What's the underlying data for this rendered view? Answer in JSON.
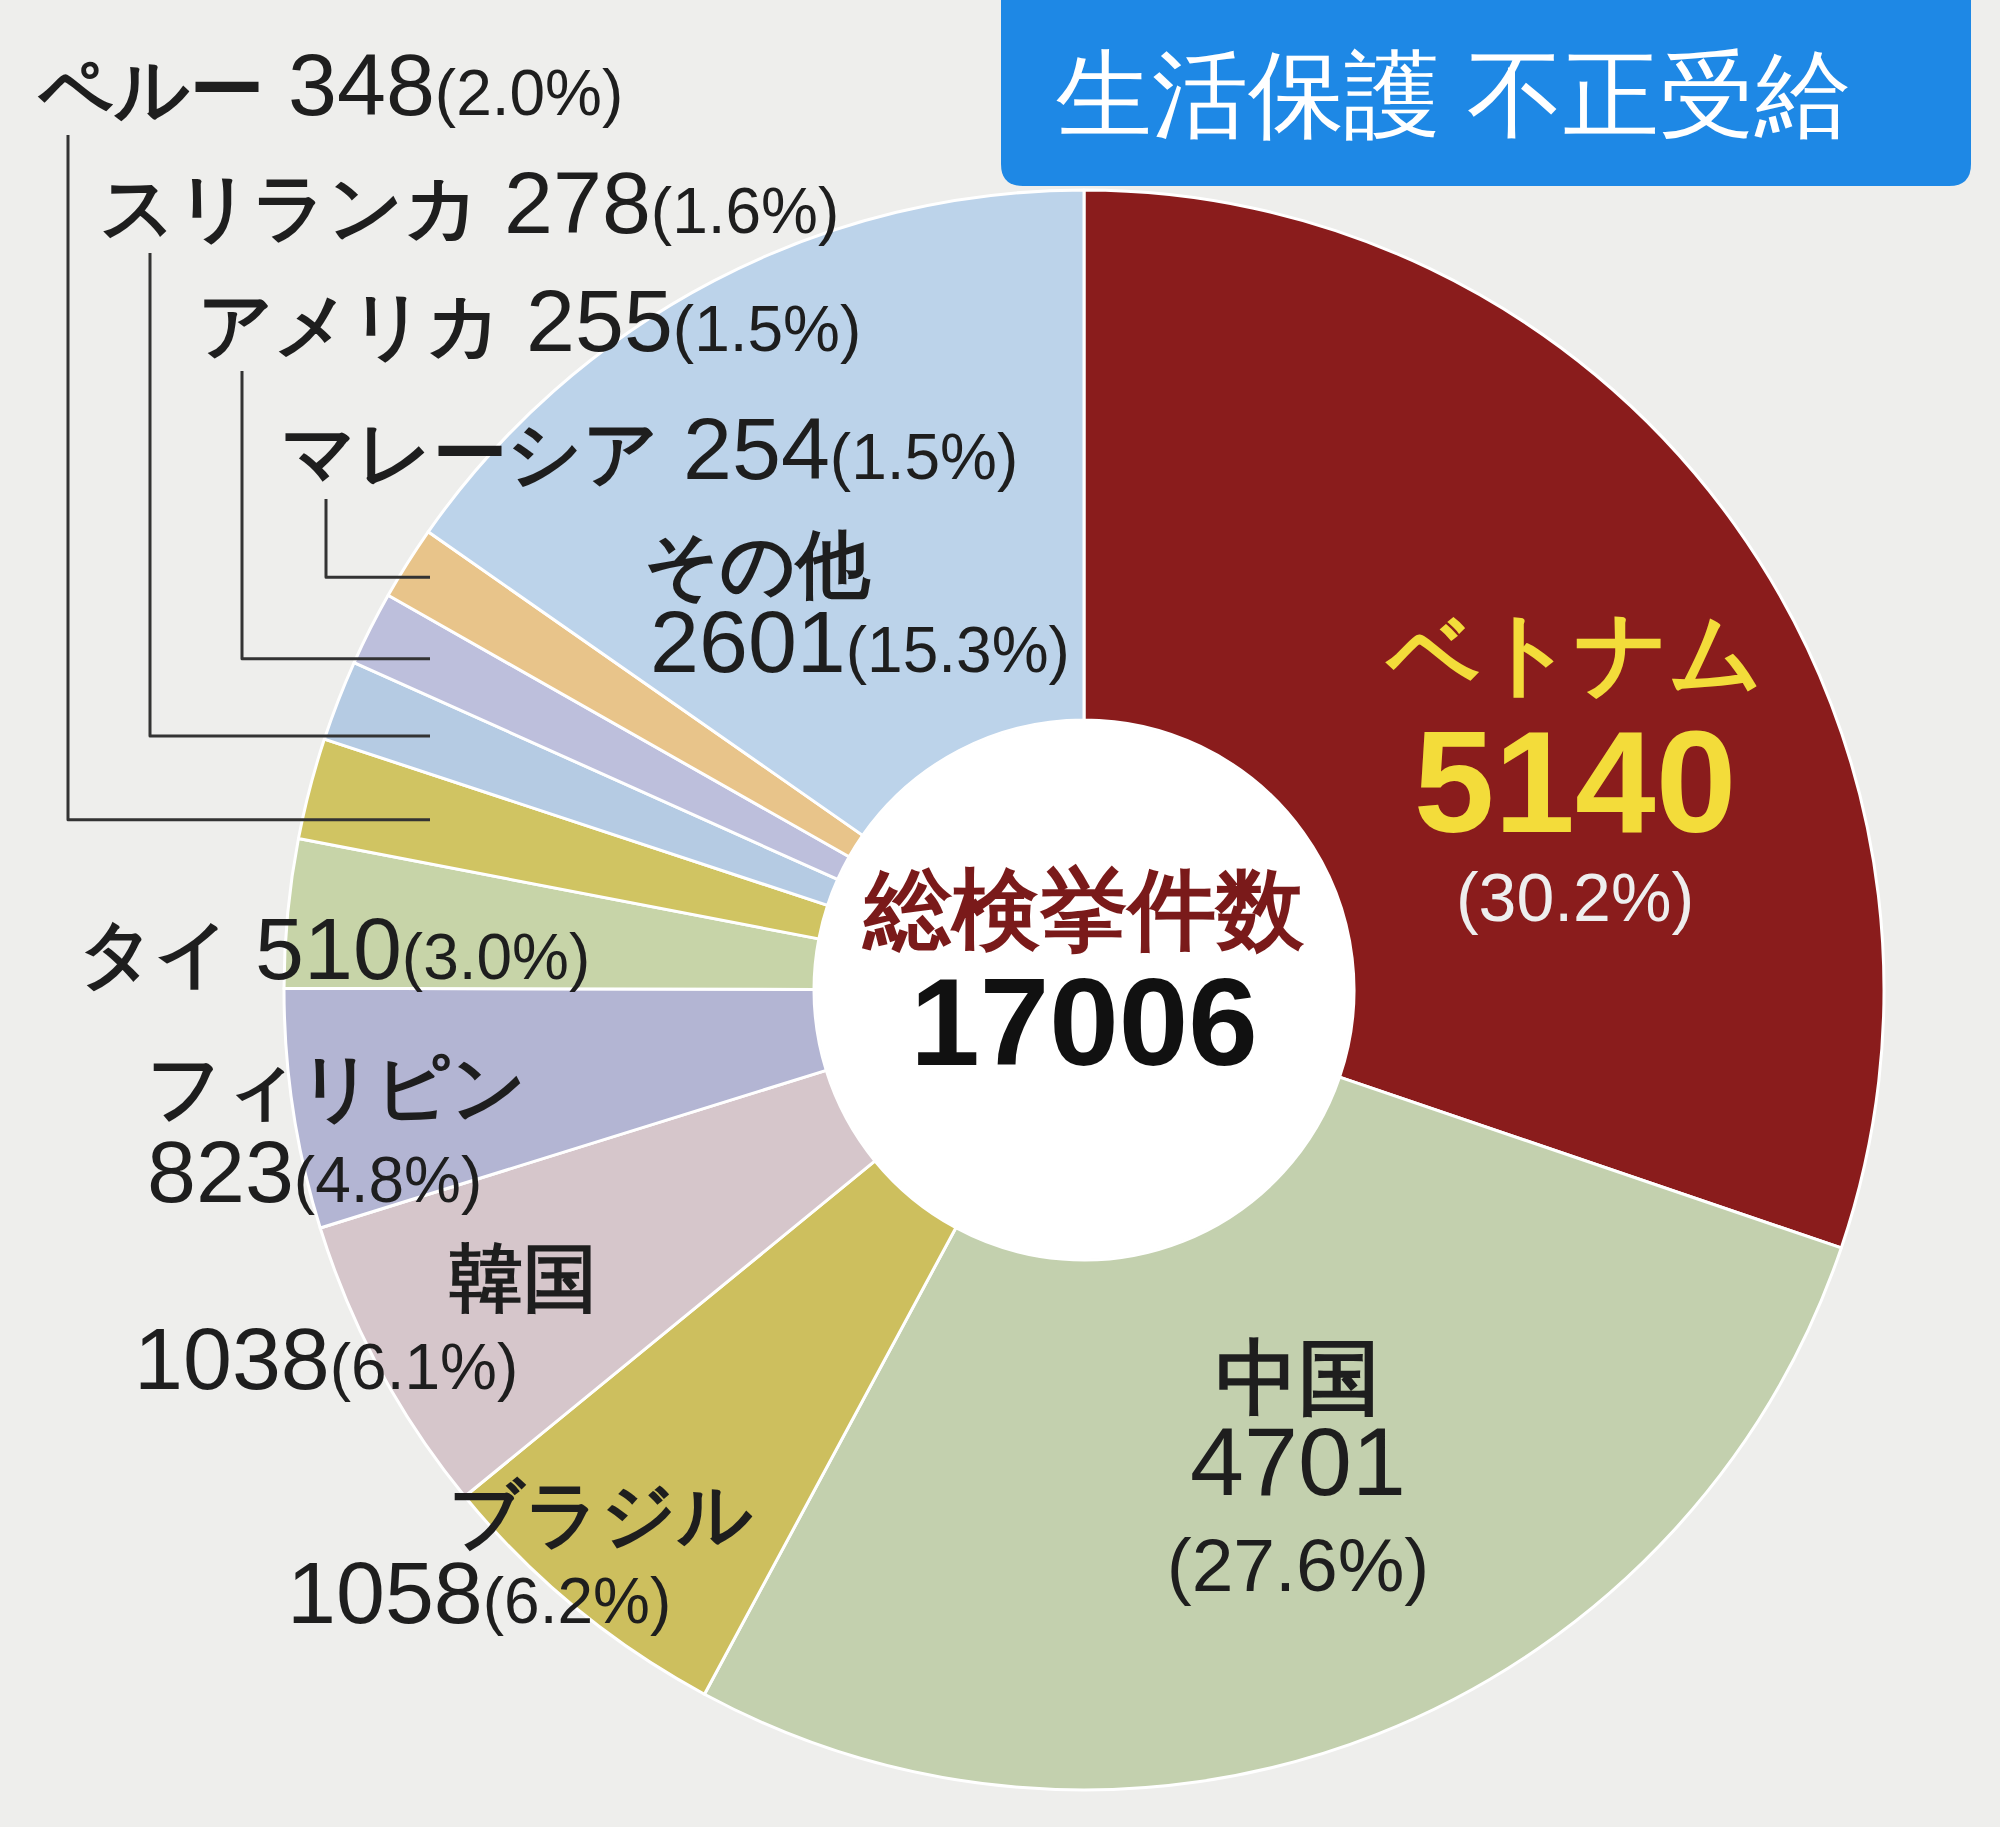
{
  "chart_data": {
    "type": "donut",
    "title": "生活保護 不正受給",
    "categories": [
      "ベトナム",
      "中国",
      "ブラジル",
      "韓国",
      "フィリピン",
      "タイ",
      "ペルー",
      "スリランカ",
      "アメリカ",
      "マレーシア",
      "その他"
    ],
    "values": [
      5140,
      4701,
      1058,
      1038,
      823,
      510,
      348,
      278,
      255,
      254,
      2601
    ],
    "colors": [
      "#8a1c1c",
      "#c3d0ae",
      "#cdbf5e",
      "#d6c6cb",
      "#b3b5d3",
      "#c7d4a8",
      "#d0c462",
      "#b5cbe3",
      "#bdbfdc",
      "#e8c48a",
      "#bcd3ea"
    ],
    "value_labels": [
      "5140(30.2%)",
      "4701(27.6%)",
      "1058(6.2%)",
      "1038(6.1%)",
      "823(4.8%)",
      "510(3.0%)",
      "348(2.0%)",
      "278(1.6%)",
      "255(1.5%)",
      "254(1.5%)",
      "2601(15.3%)"
    ],
    "annotations": [
      "総検挙件数",
      "17006"
    ]
  }
}
